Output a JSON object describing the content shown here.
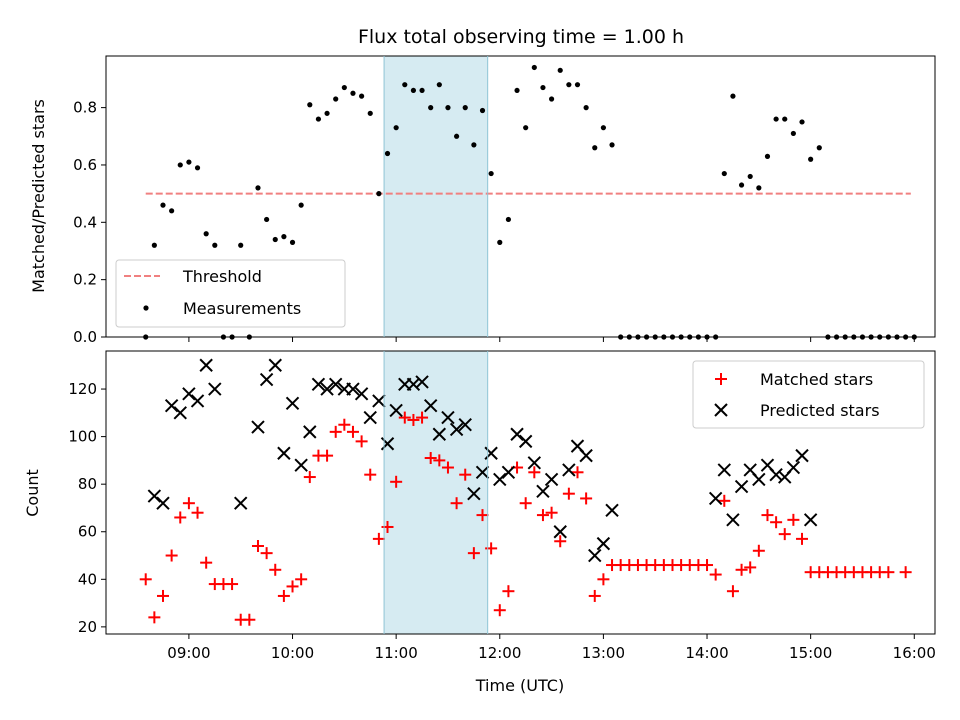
{
  "title": "Flux total observing time = 1.00 h",
  "colors": {
    "threshold": "#f08080",
    "measurement": "#000000",
    "matched": "#ff0000",
    "predicted": "#000000",
    "highlight": "#add8e6"
  },
  "chart_data": [
    {
      "type": "scatter",
      "ylabel": "Matched/Predicted stars",
      "xlim_hours": [
        8.2,
        16.2
      ],
      "ylim": [
        0,
        0.98
      ],
      "yticks": [
        0.0,
        0.2,
        0.4,
        0.6,
        0.8
      ],
      "ytick_labels": [
        "0.0",
        "0.2",
        "0.4",
        "0.6",
        "0.8"
      ],
      "highlight_span": [
        "10:53",
        "11:53"
      ],
      "threshold": {
        "name": "Threshold",
        "value": 0.5,
        "x_start": "08:35",
        "x_end": "15:58"
      },
      "legend": {
        "position": "lower-left",
        "entries": [
          "Threshold",
          "Measurements"
        ]
      },
      "series": [
        {
          "name": "Measurements",
          "marker": "dot",
          "points": [
            [
              "08:35",
              0.0
            ],
            [
              "08:40",
              0.32
            ],
            [
              "08:45",
              0.46
            ],
            [
              "08:50",
              0.44
            ],
            [
              "08:55",
              0.6
            ],
            [
              "09:00",
              0.61
            ],
            [
              "09:05",
              0.59
            ],
            [
              "09:10",
              0.36
            ],
            [
              "09:15",
              0.32
            ],
            [
              "09:20",
              0.0
            ],
            [
              "09:25",
              0.0
            ],
            [
              "09:30",
              0.32
            ],
            [
              "09:35",
              0.0
            ],
            [
              "09:40",
              0.52
            ],
            [
              "09:45",
              0.41
            ],
            [
              "09:50",
              0.34
            ],
            [
              "09:55",
              0.35
            ],
            [
              "10:00",
              0.33
            ],
            [
              "10:05",
              0.46
            ],
            [
              "10:10",
              0.81
            ],
            [
              "10:15",
              0.76
            ],
            [
              "10:20",
              0.78
            ],
            [
              "10:25",
              0.83
            ],
            [
              "10:30",
              0.87
            ],
            [
              "10:35",
              0.85
            ],
            [
              "10:40",
              0.84
            ],
            [
              "10:45",
              0.78
            ],
            [
              "10:50",
              0.5
            ],
            [
              "10:55",
              0.64
            ],
            [
              "11:00",
              0.73
            ],
            [
              "11:05",
              0.88
            ],
            [
              "11:10",
              0.86
            ],
            [
              "11:15",
              0.86
            ],
            [
              "11:20",
              0.8
            ],
            [
              "11:25",
              0.88
            ],
            [
              "11:30",
              0.8
            ],
            [
              "11:35",
              0.7
            ],
            [
              "11:40",
              0.8
            ],
            [
              "11:45",
              0.67
            ],
            [
              "11:50",
              0.79
            ],
            [
              "11:55",
              0.57
            ],
            [
              "12:00",
              0.33
            ],
            [
              "12:05",
              0.41
            ],
            [
              "12:10",
              0.86
            ],
            [
              "12:15",
              0.73
            ],
            [
              "12:20",
              0.94
            ],
            [
              "12:25",
              0.87
            ],
            [
              "12:30",
              0.83
            ],
            [
              "12:35",
              0.93
            ],
            [
              "12:40",
              0.88
            ],
            [
              "12:45",
              0.88
            ],
            [
              "12:50",
              0.8
            ],
            [
              "12:55",
              0.66
            ],
            [
              "13:00",
              0.73
            ],
            [
              "13:05",
              0.67
            ],
            [
              "13:10",
              0.0
            ],
            [
              "13:15",
              0.0
            ],
            [
              "13:20",
              0.0
            ],
            [
              "13:25",
              0.0
            ],
            [
              "13:30",
              0.0
            ],
            [
              "13:35",
              0.0
            ],
            [
              "13:40",
              0.0
            ],
            [
              "13:45",
              0.0
            ],
            [
              "13:50",
              0.0
            ],
            [
              "13:55",
              0.0
            ],
            [
              "14:00",
              0.0
            ],
            [
              "14:05",
              0.0
            ],
            [
              "14:10",
              0.57
            ],
            [
              "14:15",
              0.84
            ],
            [
              "14:20",
              0.53
            ],
            [
              "14:25",
              0.56
            ],
            [
              "14:30",
              0.52
            ],
            [
              "14:35",
              0.63
            ],
            [
              "14:40",
              0.76
            ],
            [
              "14:45",
              0.76
            ],
            [
              "14:50",
              0.71
            ],
            [
              "14:55",
              0.75
            ],
            [
              "15:00",
              0.62
            ],
            [
              "15:05",
              0.66
            ],
            [
              "15:10",
              0.0
            ],
            [
              "15:15",
              0.0
            ],
            [
              "15:20",
              0.0
            ],
            [
              "15:25",
              0.0
            ],
            [
              "15:30",
              0.0
            ],
            [
              "15:35",
              0.0
            ],
            [
              "15:40",
              0.0
            ],
            [
              "15:45",
              0.0
            ],
            [
              "15:50",
              0.0
            ],
            [
              "15:55",
              0.0
            ],
            [
              "16:00",
              0.0
            ]
          ]
        }
      ]
    },
    {
      "type": "scatter",
      "xlabel": "Time (UTC)",
      "ylabel": "Count",
      "xlim_hours": [
        8.2,
        16.2
      ],
      "ylim": [
        17,
        136
      ],
      "yticks": [
        20,
        40,
        60,
        80,
        100,
        120
      ],
      "ytick_labels": [
        "20",
        "40",
        "60",
        "80",
        "100",
        "120"
      ],
      "xtick_labels": [
        "09:00",
        "10:00",
        "11:00",
        "12:00",
        "13:00",
        "14:00",
        "15:00",
        "16:00"
      ],
      "highlight_span": [
        "10:53",
        "11:53"
      ],
      "legend": {
        "position": "top-right",
        "entries": [
          "Matched stars",
          "Predicted stars"
        ]
      },
      "series": [
        {
          "name": "Matched stars",
          "marker": "plus",
          "points": [
            [
              "08:35",
              40
            ],
            [
              "08:40",
              24
            ],
            [
              "08:45",
              33
            ],
            [
              "08:50",
              50
            ],
            [
              "08:55",
              66
            ],
            [
              "09:00",
              72
            ],
            [
              "09:05",
              68
            ],
            [
              "09:10",
              47
            ],
            [
              "09:15",
              38
            ],
            [
              "09:20",
              38
            ],
            [
              "09:25",
              38
            ],
            [
              "09:30",
              23
            ],
            [
              "09:35",
              23
            ],
            [
              "09:40",
              54
            ],
            [
              "09:45",
              51
            ],
            [
              "09:50",
              44
            ],
            [
              "09:55",
              33
            ],
            [
              "10:00",
              37
            ],
            [
              "10:05",
              40
            ],
            [
              "10:10",
              83
            ],
            [
              "10:15",
              92
            ],
            [
              "10:20",
              92
            ],
            [
              "10:25",
              102
            ],
            [
              "10:30",
              105
            ],
            [
              "10:35",
              102
            ],
            [
              "10:40",
              98
            ],
            [
              "10:45",
              84
            ],
            [
              "10:50",
              57
            ],
            [
              "10:55",
              62
            ],
            [
              "11:00",
              81
            ],
            [
              "11:05",
              108
            ],
            [
              "11:10",
              107
            ],
            [
              "11:15",
              108
            ],
            [
              "11:20",
              91
            ],
            [
              "11:25",
              90
            ],
            [
              "11:30",
              87
            ],
            [
              "11:35",
              72
            ],
            [
              "11:40",
              84
            ],
            [
              "11:45",
              51
            ],
            [
              "11:50",
              67
            ],
            [
              "11:55",
              53
            ],
            [
              "12:00",
              27
            ],
            [
              "12:05",
              35
            ],
            [
              "12:10",
              87
            ],
            [
              "12:15",
              72
            ],
            [
              "12:20",
              85
            ],
            [
              "12:25",
              67
            ],
            [
              "12:30",
              68
            ],
            [
              "12:35",
              56
            ],
            [
              "12:40",
              76
            ],
            [
              "12:45",
              85
            ],
            [
              "12:50",
              74
            ],
            [
              "12:55",
              33
            ],
            [
              "13:00",
              40
            ],
            [
              "13:05",
              46
            ],
            [
              "13:10",
              46
            ],
            [
              "13:15",
              46
            ],
            [
              "13:20",
              46
            ],
            [
              "13:25",
              46
            ],
            [
              "13:30",
              46
            ],
            [
              "13:35",
              46
            ],
            [
              "13:40",
              46
            ],
            [
              "13:45",
              46
            ],
            [
              "13:50",
              46
            ],
            [
              "13:55",
              46
            ],
            [
              "14:00",
              46
            ],
            [
              "14:05",
              42
            ],
            [
              "14:10",
              73
            ],
            [
              "14:15",
              35
            ],
            [
              "14:20",
              44
            ],
            [
              "14:25",
              45
            ],
            [
              "14:30",
              52
            ],
            [
              "14:35",
              67
            ],
            [
              "14:40",
              64
            ],
            [
              "14:45",
              59
            ],
            [
              "14:50",
              65
            ],
            [
              "14:55",
              57
            ],
            [
              "15:00",
              43
            ],
            [
              "15:05",
              43
            ],
            [
              "15:10",
              43
            ],
            [
              "15:15",
              43
            ],
            [
              "15:20",
              43
            ],
            [
              "15:25",
              43
            ],
            [
              "15:30",
              43
            ],
            [
              "15:35",
              43
            ],
            [
              "15:40",
              43
            ],
            [
              "15:45",
              43
            ],
            [
              "15:55",
              43
            ]
          ]
        },
        {
          "name": "Predicted stars",
          "marker": "x",
          "points": [
            [
              "08:40",
              75
            ],
            [
              "08:45",
              72
            ],
            [
              "08:50",
              113
            ],
            [
              "08:55",
              110
            ],
            [
              "09:00",
              118
            ],
            [
              "09:05",
              115
            ],
            [
              "09:10",
              130
            ],
            [
              "09:15",
              120
            ],
            [
              "09:30",
              72
            ],
            [
              "09:40",
              104
            ],
            [
              "09:45",
              124
            ],
            [
              "09:50",
              130
            ],
            [
              "09:55",
              93
            ],
            [
              "10:00",
              114
            ],
            [
              "10:05",
              88
            ],
            [
              "10:10",
              102
            ],
            [
              "10:15",
              122
            ],
            [
              "10:20",
              120
            ],
            [
              "10:25",
              122
            ],
            [
              "10:30",
              120
            ],
            [
              "10:35",
              120
            ],
            [
              "10:40",
              118
            ],
            [
              "10:45",
              108
            ],
            [
              "10:50",
              115
            ],
            [
              "10:55",
              97
            ],
            [
              "11:00",
              111
            ],
            [
              "11:05",
              122
            ],
            [
              "11:10",
              122
            ],
            [
              "11:15",
              123
            ],
            [
              "11:20",
              113
            ],
            [
              "11:25",
              101
            ],
            [
              "11:30",
              108
            ],
            [
              "11:35",
              103
            ],
            [
              "11:40",
              105
            ],
            [
              "11:45",
              76
            ],
            [
              "11:50",
              85
            ],
            [
              "11:55",
              93
            ],
            [
              "12:00",
              82
            ],
            [
              "12:05",
              85
            ],
            [
              "12:10",
              101
            ],
            [
              "12:15",
              98
            ],
            [
              "12:20",
              89
            ],
            [
              "12:25",
              77
            ],
            [
              "12:30",
              82
            ],
            [
              "12:35",
              60
            ],
            [
              "12:40",
              86
            ],
            [
              "12:45",
              96
            ],
            [
              "12:50",
              92
            ],
            [
              "12:55",
              50
            ],
            [
              "13:00",
              55
            ],
            [
              "13:05",
              69
            ],
            [
              "14:05",
              74
            ],
            [
              "14:10",
              86
            ],
            [
              "14:15",
              65
            ],
            [
              "14:20",
              79
            ],
            [
              "14:25",
              86
            ],
            [
              "14:30",
              82
            ],
            [
              "14:35",
              88
            ],
            [
              "14:40",
              84
            ],
            [
              "14:45",
              83
            ],
            [
              "14:50",
              87
            ],
            [
              "14:55",
              92
            ],
            [
              "15:00",
              65
            ]
          ]
        }
      ]
    }
  ]
}
